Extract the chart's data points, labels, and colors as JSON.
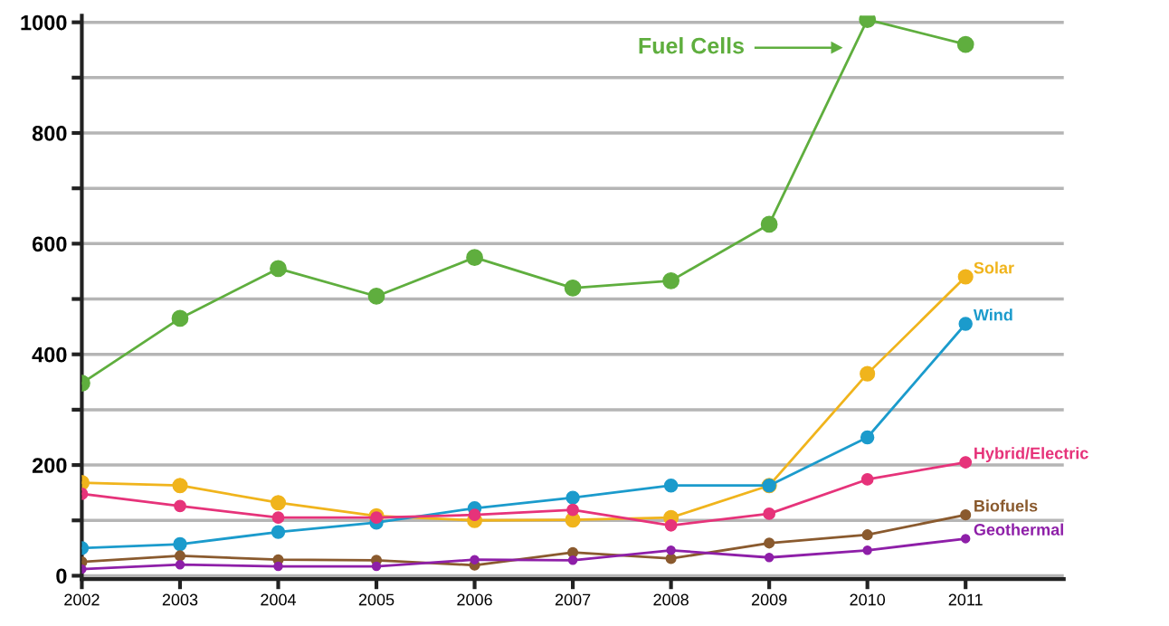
{
  "chart_data": {
    "type": "line",
    "x": [
      2002,
      2003,
      2004,
      2005,
      2006,
      2007,
      2008,
      2009,
      2010,
      2011
    ],
    "series": [
      {
        "name": "Fuel Cells",
        "color": "#5fae3e",
        "values": [
          348,
          465,
          555,
          505,
          575,
          520,
          533,
          635,
          1005,
          960
        ]
      },
      {
        "name": "Solar",
        "color": "#f0b41c",
        "values": [
          168,
          163,
          132,
          108,
          100,
          101,
          105,
          163,
          365,
          540
        ]
      },
      {
        "name": "Wind",
        "color": "#1b9bcc",
        "values": [
          50,
          57,
          79,
          96,
          122,
          141,
          163,
          163,
          250,
          455
        ]
      },
      {
        "name": "Hybrid/Electric",
        "color": "#e6337a",
        "values": [
          148,
          126,
          105,
          105,
          110,
          119,
          91,
          112,
          174,
          205
        ]
      },
      {
        "name": "Biofuels",
        "color": "#8a5a2e",
        "values": [
          25,
          36,
          29,
          28,
          19,
          42,
          31,
          59,
          74,
          110
        ]
      },
      {
        "name": "Geothermal",
        "color": "#8e1fa8",
        "values": [
          12,
          20,
          17,
          17,
          29,
          28,
          46,
          33,
          46,
          67
        ]
      }
    ],
    "xlim": [
      2002,
      2012
    ],
    "xticks": [
      2002,
      2003,
      2004,
      2005,
      2006,
      2007,
      2008,
      2009,
      2010,
      2011
    ],
    "ylim": [
      -6,
      1012
    ],
    "yticks": [
      0,
      {
        "value": 100,
        "label": null
      },
      200,
      {
        "value": 300,
        "label": null
      },
      400,
      {
        "value": 500,
        "label": null
      },
      600,
      {
        "value": 700,
        "label": null
      },
      800,
      {
        "value": 900,
        "label": null
      },
      1000
    ],
    "grid": "y",
    "marker": "circle",
    "line_style": "solid"
  }
}
